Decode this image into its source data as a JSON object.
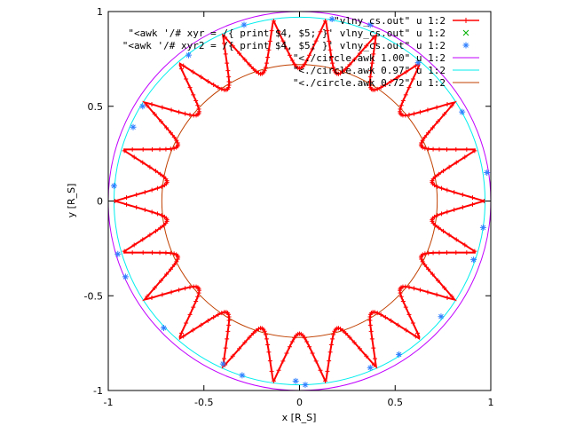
{
  "chart_data": {
    "type": "line",
    "xlabel": "x [R_S]",
    "ylabel": "y [R_S]",
    "xlim": [
      -1,
      1
    ],
    "ylim": [
      -1,
      1
    ],
    "grid": false,
    "legend_position": "top-right",
    "x_ticks": [
      "-1",
      "-0.5",
      "0",
      "0.5",
      "1"
    ],
    "y_ticks": [
      "-1",
      "-0.5",
      "0",
      "0.5",
      "1"
    ],
    "x_tick_values": [
      -1,
      -0.5,
      0,
      0.5,
      1
    ],
    "y_tick_values": [
      -1,
      -0.5,
      0,
      0.5,
      1
    ],
    "series": [
      {
        "name": "\"vlny_cs.out\" u 1:2",
        "style": "linespoints-plus",
        "color": "#ff0000",
        "cusp_count": 22,
        "inner_radius": 0.7,
        "outer_radius": 0.965
      },
      {
        "name": "\"<awk '/# xyr = /{ print $4, $5; }' vlny_cs.out\" u 1:2",
        "style": "points-cross",
        "color": "#00b000",
        "points": []
      },
      {
        "name": "\"<awk '/# xyr2 = /{ print $4, $5; }' vlny_cs.out\" u 1:2",
        "style": "points-star",
        "color": "#3080ff",
        "points": [
          [
            0.98,
            0.15
          ],
          [
            0.96,
            -0.14
          ],
          [
            0.91,
            -0.31
          ],
          [
            0.85,
            0.47
          ],
          [
            0.74,
            -0.61
          ],
          [
            0.62,
            0.73
          ],
          [
            0.52,
            -0.81
          ],
          [
            0.37,
            0.93
          ],
          [
            0.37,
            -0.88
          ],
          [
            0.17,
            0.96
          ],
          [
            0.03,
            -0.97
          ],
          [
            -0.02,
            -0.95
          ],
          [
            -0.29,
            0.93
          ],
          [
            -0.3,
            -0.92
          ],
          [
            -0.4,
            -0.86
          ],
          [
            -0.58,
            0.77
          ],
          [
            -0.71,
            -0.67
          ],
          [
            -0.82,
            0.5
          ],
          [
            -0.87,
            0.39
          ],
          [
            -0.91,
            -0.4
          ],
          [
            -0.95,
            -0.28
          ],
          [
            -0.97,
            0.08
          ]
        ]
      },
      {
        "name": "\"<./circle.awk 1.00\" u 1:2",
        "style": "lines",
        "color": "#c000ff",
        "radius": 1.0
      },
      {
        "name": "\"<./circle.awk 0.97\" u 1:2",
        "style": "lines",
        "color": "#00eeee",
        "radius": 0.97
      },
      {
        "name": "\"<./circle.awk 0.72\" u 1:2",
        "style": "lines",
        "color": "#c04000",
        "radius": 0.72
      }
    ]
  }
}
